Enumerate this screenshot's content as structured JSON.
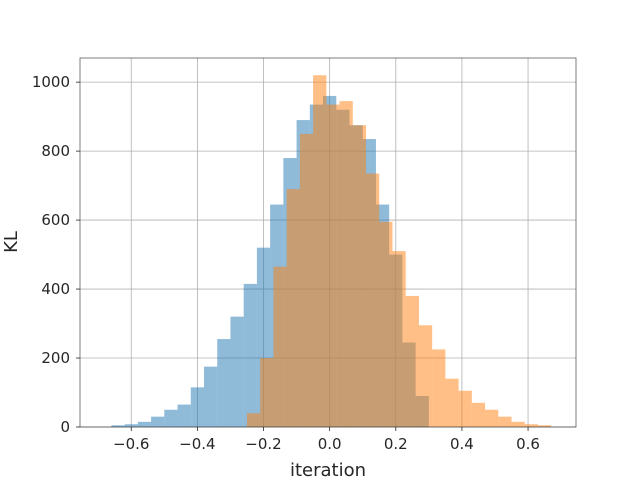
{
  "chart_data": {
    "type": "bar",
    "title": "",
    "xlabel": "iteration",
    "ylabel": "KL",
    "xlim": [
      -0.755,
      0.745
    ],
    "ylim": [
      0,
      1070
    ],
    "grid": true,
    "legend": "none",
    "x_ticks": [
      -0.6,
      -0.4,
      -0.2,
      0.0,
      0.2,
      0.4,
      0.6
    ],
    "x_tick_labels": [
      "−0.6",
      "−0.4",
      "−0.2",
      "0.0",
      "0.2",
      "0.4",
      "0.6"
    ],
    "y_ticks": [
      0,
      200,
      400,
      600,
      800,
      1000
    ],
    "y_tick_labels": [
      "0",
      "200",
      "400",
      "600",
      "800",
      "1000"
    ],
    "series": [
      {
        "color": "#1f77b4",
        "alpha": 0.5,
        "bin_edges": [
          -0.66,
          -0.62,
          -0.58,
          -0.54,
          -0.5,
          -0.46,
          -0.42,
          -0.38,
          -0.34,
          -0.3,
          -0.26,
          -0.22,
          -0.18,
          -0.14,
          -0.1,
          -0.06,
          -0.02,
          0.02,
          0.06,
          0.1,
          0.14,
          0.18,
          0.22,
          0.26,
          0.3
        ],
        "values": [
          5,
          8,
          15,
          30,
          50,
          65,
          115,
          175,
          255,
          320,
          415,
          520,
          645,
          780,
          890,
          935,
          960,
          920,
          875,
          835,
          645,
          500,
          245,
          90
        ]
      },
      {
        "color": "#ff7f0e",
        "alpha": 0.5,
        "bin_edges": [
          -0.25,
          -0.21,
          -0.17,
          -0.13,
          -0.09,
          -0.05,
          -0.01,
          0.03,
          0.07,
          0.11,
          0.15,
          0.19,
          0.23,
          0.27,
          0.31,
          0.35,
          0.39,
          0.43,
          0.47,
          0.51,
          0.55,
          0.59,
          0.63,
          0.67
        ],
        "values": [
          40,
          200,
          465,
          690,
          850,
          1020,
          935,
          945,
          875,
          735,
          595,
          510,
          380,
          295,
          225,
          140,
          105,
          70,
          50,
          30,
          15,
          8,
          5
        ]
      }
    ]
  }
}
